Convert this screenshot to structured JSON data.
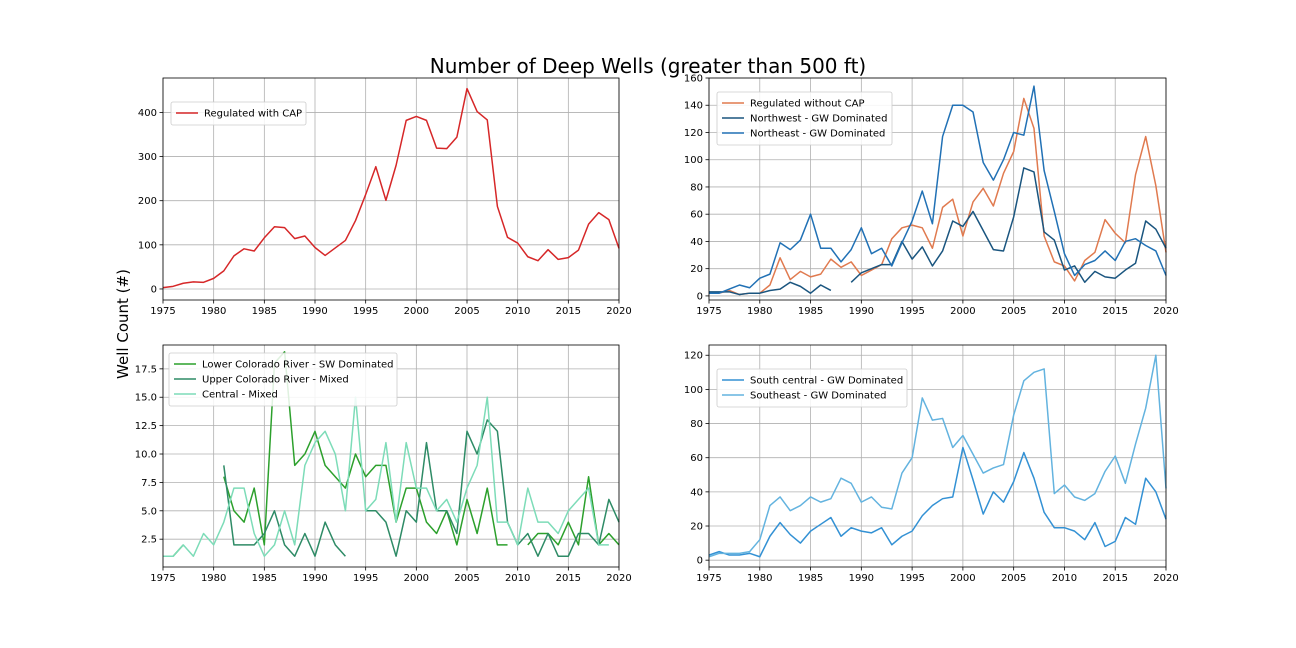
{
  "figure": {
    "title": "Number of Deep Wells (greater than 500 ft)",
    "ylabel": "Well Count (#)"
  },
  "chart_data": [
    {
      "type": "line",
      "xlim": [
        1975,
        2020
      ],
      "ylim": [
        -25,
        478
      ],
      "xticks": [
        1975,
        1980,
        1985,
        1990,
        1995,
        2000,
        2005,
        2010,
        2015,
        2020
      ],
      "yticks": [
        0,
        100,
        200,
        300,
        400
      ],
      "ytick_labels": [
        "0",
        "100",
        "200",
        "300",
        "400"
      ],
      "grid": true,
      "legend_position": "upper-left",
      "series": [
        {
          "name": "Regulated with CAP",
          "color": "#d62728",
          "x": [
            1975,
            1976,
            1977,
            1978,
            1979,
            1980,
            1981,
            1982,
            1983,
            1984,
            1985,
            1986,
            1987,
            1988,
            1989,
            1990,
            1991,
            1992,
            1993,
            1994,
            1995,
            1996,
            1997,
            1998,
            1999,
            2000,
            2001,
            2002,
            2003,
            2004,
            2005,
            2006,
            2007,
            2008,
            2009,
            2010,
            2011,
            2012,
            2013,
            2014,
            2015,
            2016,
            2017,
            2018,
            2019,
            2020
          ],
          "y": [
            3,
            6,
            13,
            16,
            15,
            24,
            41,
            75,
            91,
            86,
            116,
            141,
            139,
            114,
            120,
            94,
            76,
            93,
            110,
            155,
            214,
            277,
            201,
            280,
            382,
            391,
            382,
            319,
            318,
            344,
            454,
            402,
            383,
            187,
            117,
            104,
            73,
            64,
            89,
            67,
            71,
            88,
            147,
            173,
            157,
            92
          ]
        }
      ]
    },
    {
      "type": "line",
      "xlim": [
        1975,
        2020
      ],
      "ylim": [
        -3,
        160
      ],
      "xticks": [
        1975,
        1980,
        1985,
        1990,
        1995,
        2000,
        2005,
        2010,
        2015,
        2020
      ],
      "yticks": [
        0,
        20,
        40,
        60,
        80,
        100,
        120,
        140,
        160
      ],
      "ytick_labels": [
        "0",
        "20",
        "40",
        "60",
        "80",
        "100",
        "120",
        "140",
        "160"
      ],
      "grid": true,
      "legend_position": "upper-left",
      "series": [
        {
          "name": "Regulated without CAP",
          "color": "#e07a4f",
          "x": [
            1975,
            1976,
            1977,
            1978,
            1979,
            1980,
            1981,
            1982,
            1983,
            1984,
            1985,
            1986,
            1987,
            1988,
            1989,
            1990,
            1991,
            1992,
            1993,
            1994,
            1995,
            1996,
            1997,
            1998,
            1999,
            2000,
            2001,
            2002,
            2003,
            2004,
            2005,
            2006,
            2007,
            2008,
            2009,
            2010,
            2011,
            2012,
            2013,
            2014,
            2015,
            2016,
            2017,
            2018,
            2019,
            2020
          ],
          "y": [
            2,
            2,
            4,
            1,
            2,
            2,
            8,
            28,
            12,
            18,
            14,
            16,
            27,
            21,
            25,
            15,
            19,
            23,
            42,
            50,
            52,
            50,
            35,
            65,
            71,
            44,
            69,
            79,
            66,
            90,
            106,
            145,
            123,
            44,
            25,
            22,
            11,
            26,
            32,
            56,
            46,
            39,
            89,
            117,
            81,
            32
          ]
        },
        {
          "name": "Northwest - GW Dominated",
          "color": "#1a557f",
          "x": [
            1975,
            1976,
            1977,
            1978,
            1979,
            1980,
            1981,
            1982,
            1983,
            1984,
            1985,
            1986,
            1987,
            null,
            1989,
            1990,
            1991,
            1992,
            1993,
            1994,
            1995,
            1996,
            1997,
            1998,
            1999,
            2000,
            2001,
            2002,
            2003,
            2004,
            2005,
            2006,
            2007,
            2008,
            2009,
            2010,
            2011,
            2012,
            2013,
            2014,
            2015,
            2016,
            2017,
            2018,
            2019,
            2020
          ],
          "y": [
            3,
            3,
            3,
            1,
            2,
            2,
            4,
            5,
            10,
            7,
            2,
            8,
            4,
            null,
            10,
            17,
            20,
            23,
            23,
            40,
            27,
            36,
            22,
            33,
            55,
            51,
            62,
            48,
            34,
            33,
            58,
            94,
            91,
            47,
            41,
            19,
            22,
            10,
            18,
            14,
            13,
            19,
            24,
            55,
            49,
            35
          ]
        },
        {
          "name": "Northeast - GW Dominated",
          "color": "#2171b5",
          "x": [
            1975,
            1976,
            1977,
            1978,
            1979,
            1980,
            1981,
            1982,
            1983,
            1984,
            1985,
            1986,
            1987,
            1988,
            1989,
            1990,
            1991,
            1992,
            1993,
            1994,
            1995,
            1996,
            1997,
            1998,
            1999,
            2000,
            2001,
            2002,
            2003,
            2004,
            2005,
            2006,
            2007,
            2008,
            2009,
            2010,
            2011,
            2012,
            2013,
            2014,
            2015,
            2016,
            2017,
            2018,
            2019,
            2020
          ],
          "y": [
            2,
            2,
            5,
            8,
            6,
            13,
            16,
            39,
            34,
            41,
            60,
            35,
            35,
            25,
            34,
            50,
            31,
            35,
            22,
            39,
            55,
            77,
            53,
            117,
            140,
            140,
            135,
            98,
            85,
            100,
            120,
            118,
            154,
            92,
            62,
            31,
            15,
            23,
            26,
            33,
            26,
            40,
            42,
            37,
            33,
            15
          ]
        }
      ]
    },
    {
      "type": "line",
      "xlim": [
        1975,
        2020
      ],
      "ylim": [
        0.05,
        19.6
      ],
      "xticks": [
        1975,
        1980,
        1985,
        1990,
        1995,
        2000,
        2005,
        2010,
        2015,
        2020
      ],
      "yticks": [
        2.5,
        5.0,
        7.5,
        10.0,
        12.5,
        15.0,
        17.5
      ],
      "ytick_labels": [
        "2.5",
        "5.0",
        "7.5",
        "10.0",
        "12.5",
        "15.0",
        "17.5"
      ],
      "grid": true,
      "legend_position": "upper-right",
      "series": [
        {
          "name": "Lower Colorado River - SW Dominated",
          "color": "#2ca02c",
          "x": [
            1975,
            1976,
            1977,
            null,
            1981,
            1982,
            1983,
            1984,
            1985,
            1986,
            1987,
            1988,
            1989,
            1990,
            1991,
            1992,
            1993,
            1994,
            1995,
            1996,
            1997,
            1998,
            1999,
            2000,
            2001,
            2002,
            2003,
            2004,
            2005,
            2006,
            2007,
            2008,
            2009,
            null,
            2011,
            2012,
            2013,
            2014,
            2015,
            2016,
            2017,
            2018,
            2019,
            2020
          ],
          "y": [
            1,
            1,
            2,
            null,
            8,
            5,
            4,
            7,
            2,
            18,
            19,
            9,
            10,
            12,
            9,
            8,
            7,
            10,
            8,
            9,
            9,
            4,
            7,
            7,
            4,
            3,
            5,
            2,
            6,
            3,
            7,
            2,
            2,
            null,
            2,
            3,
            3,
            2,
            4,
            2,
            8,
            2,
            3,
            2
          ]
        },
        {
          "name": "Upper Colorado River - Mixed",
          "color": "#2e8b66",
          "x": [
            1981,
            1982,
            1983,
            1984,
            1985,
            1986,
            1987,
            1988,
            1989,
            1990,
            1991,
            1992,
            1993,
            null,
            1995,
            1996,
            1997,
            1998,
            1999,
            2000,
            2001,
            2002,
            2003,
            2004,
            2005,
            2006,
            2007,
            2008,
            2009,
            2010,
            2011,
            2012,
            2013,
            2014,
            2015,
            2016,
            2017,
            2018,
            2019,
            2020
          ],
          "y": [
            9,
            2,
            2,
            2,
            3,
            5,
            2,
            1,
            3,
            1,
            4,
            2,
            1,
            null,
            5,
            5,
            4,
            1,
            5,
            4,
            11,
            5,
            5,
            3,
            12,
            10,
            13,
            12,
            4,
            2,
            3,
            1,
            3,
            1,
            1,
            3,
            3,
            2,
            6,
            4
          ]
        },
        {
          "name": "Central - Mixed",
          "color": "#7ddcb8",
          "x": [
            1975,
            1976,
            1977,
            1978,
            1979,
            1980,
            1981,
            1982,
            1983,
            1984,
            1985,
            1986,
            1987,
            1988,
            1989,
            1990,
            1991,
            1992,
            1993,
            1994,
            1995,
            1996,
            1997,
            1998,
            1999,
            2000,
            2001,
            2002,
            2003,
            2004,
            2005,
            2006,
            2007,
            2008,
            2009,
            2010,
            2011,
            2012,
            2013,
            2014,
            2015,
            2016,
            2017,
            2018,
            2019
          ],
          "y": [
            1,
            1,
            2,
            1,
            3,
            2,
            4,
            7,
            7,
            3,
            1,
            2,
            5,
            2,
            9,
            11,
            12,
            10,
            5,
            15,
            5,
            6,
            11,
            4,
            11,
            7,
            7,
            5,
            6,
            4,
            7,
            9,
            15,
            4,
            4,
            2,
            7,
            4,
            4,
            3,
            5,
            6,
            7,
            2,
            2
          ]
        }
      ]
    },
    {
      "type": "line",
      "xlim": [
        1975,
        2020
      ],
      "ylim": [
        -4,
        126
      ],
      "xticks": [
        1975,
        1980,
        1985,
        1990,
        1995,
        2000,
        2005,
        2010,
        2015,
        2020
      ],
      "yticks": [
        0,
        20,
        40,
        60,
        80,
        100,
        120
      ],
      "ytick_labels": [
        "0",
        "20",
        "40",
        "60",
        "80",
        "100",
        "120"
      ],
      "grid": true,
      "legend_position": "upper-left",
      "series": [
        {
          "name": "South central - GW Dominated",
          "color": "#3391d4",
          "x": [
            1975,
            1976,
            1977,
            1978,
            1979,
            1980,
            1981,
            1982,
            1983,
            1984,
            1985,
            1986,
            1987,
            1988,
            1989,
            1990,
            1991,
            1992,
            1993,
            1994,
            1995,
            1996,
            1997,
            1998,
            1999,
            2000,
            2001,
            2002,
            2003,
            2004,
            2005,
            2006,
            2007,
            2008,
            2009,
            2010,
            2011,
            2012,
            2013,
            2014,
            2015,
            2016,
            2017,
            2018,
            2019,
            2020
          ],
          "y": [
            3,
            5,
            3,
            3,
            4,
            2,
            14,
            22,
            15,
            10,
            17,
            21,
            25,
            14,
            19,
            17,
            16,
            19,
            9,
            14,
            17,
            26,
            32,
            36,
            37,
            66,
            47,
            27,
            40,
            34,
            46,
            63,
            48,
            28,
            19,
            19,
            17,
            12,
            22,
            8,
            11,
            25,
            21,
            48,
            40,
            24
          ]
        },
        {
          "name": "Southeast - GW Dominated",
          "color": "#63b3df",
          "x": [
            1975,
            1976,
            1977,
            1978,
            1979,
            1980,
            1981,
            1982,
            1983,
            1984,
            1985,
            1986,
            1987,
            1988,
            1989,
            1990,
            1991,
            1992,
            1993,
            1994,
            1995,
            1996,
            1997,
            1998,
            1999,
            2000,
            2001,
            2002,
            2003,
            2004,
            2005,
            2006,
            2007,
            2008,
            2009,
            2010,
            2011,
            2012,
            2013,
            2014,
            2015,
            2016,
            2017,
            2018,
            2019,
            2020
          ],
          "y": [
            2,
            4,
            4,
            4,
            5,
            12,
            32,
            37,
            29,
            32,
            37,
            34,
            36,
            48,
            45,
            34,
            37,
            31,
            30,
            51,
            60,
            95,
            82,
            83,
            66,
            73,
            62,
            51,
            54,
            56,
            85,
            105,
            110,
            112,
            39,
            44,
            37,
            35,
            39,
            52,
            61,
            45,
            68,
            89,
            120,
            42
          ]
        }
      ]
    }
  ]
}
